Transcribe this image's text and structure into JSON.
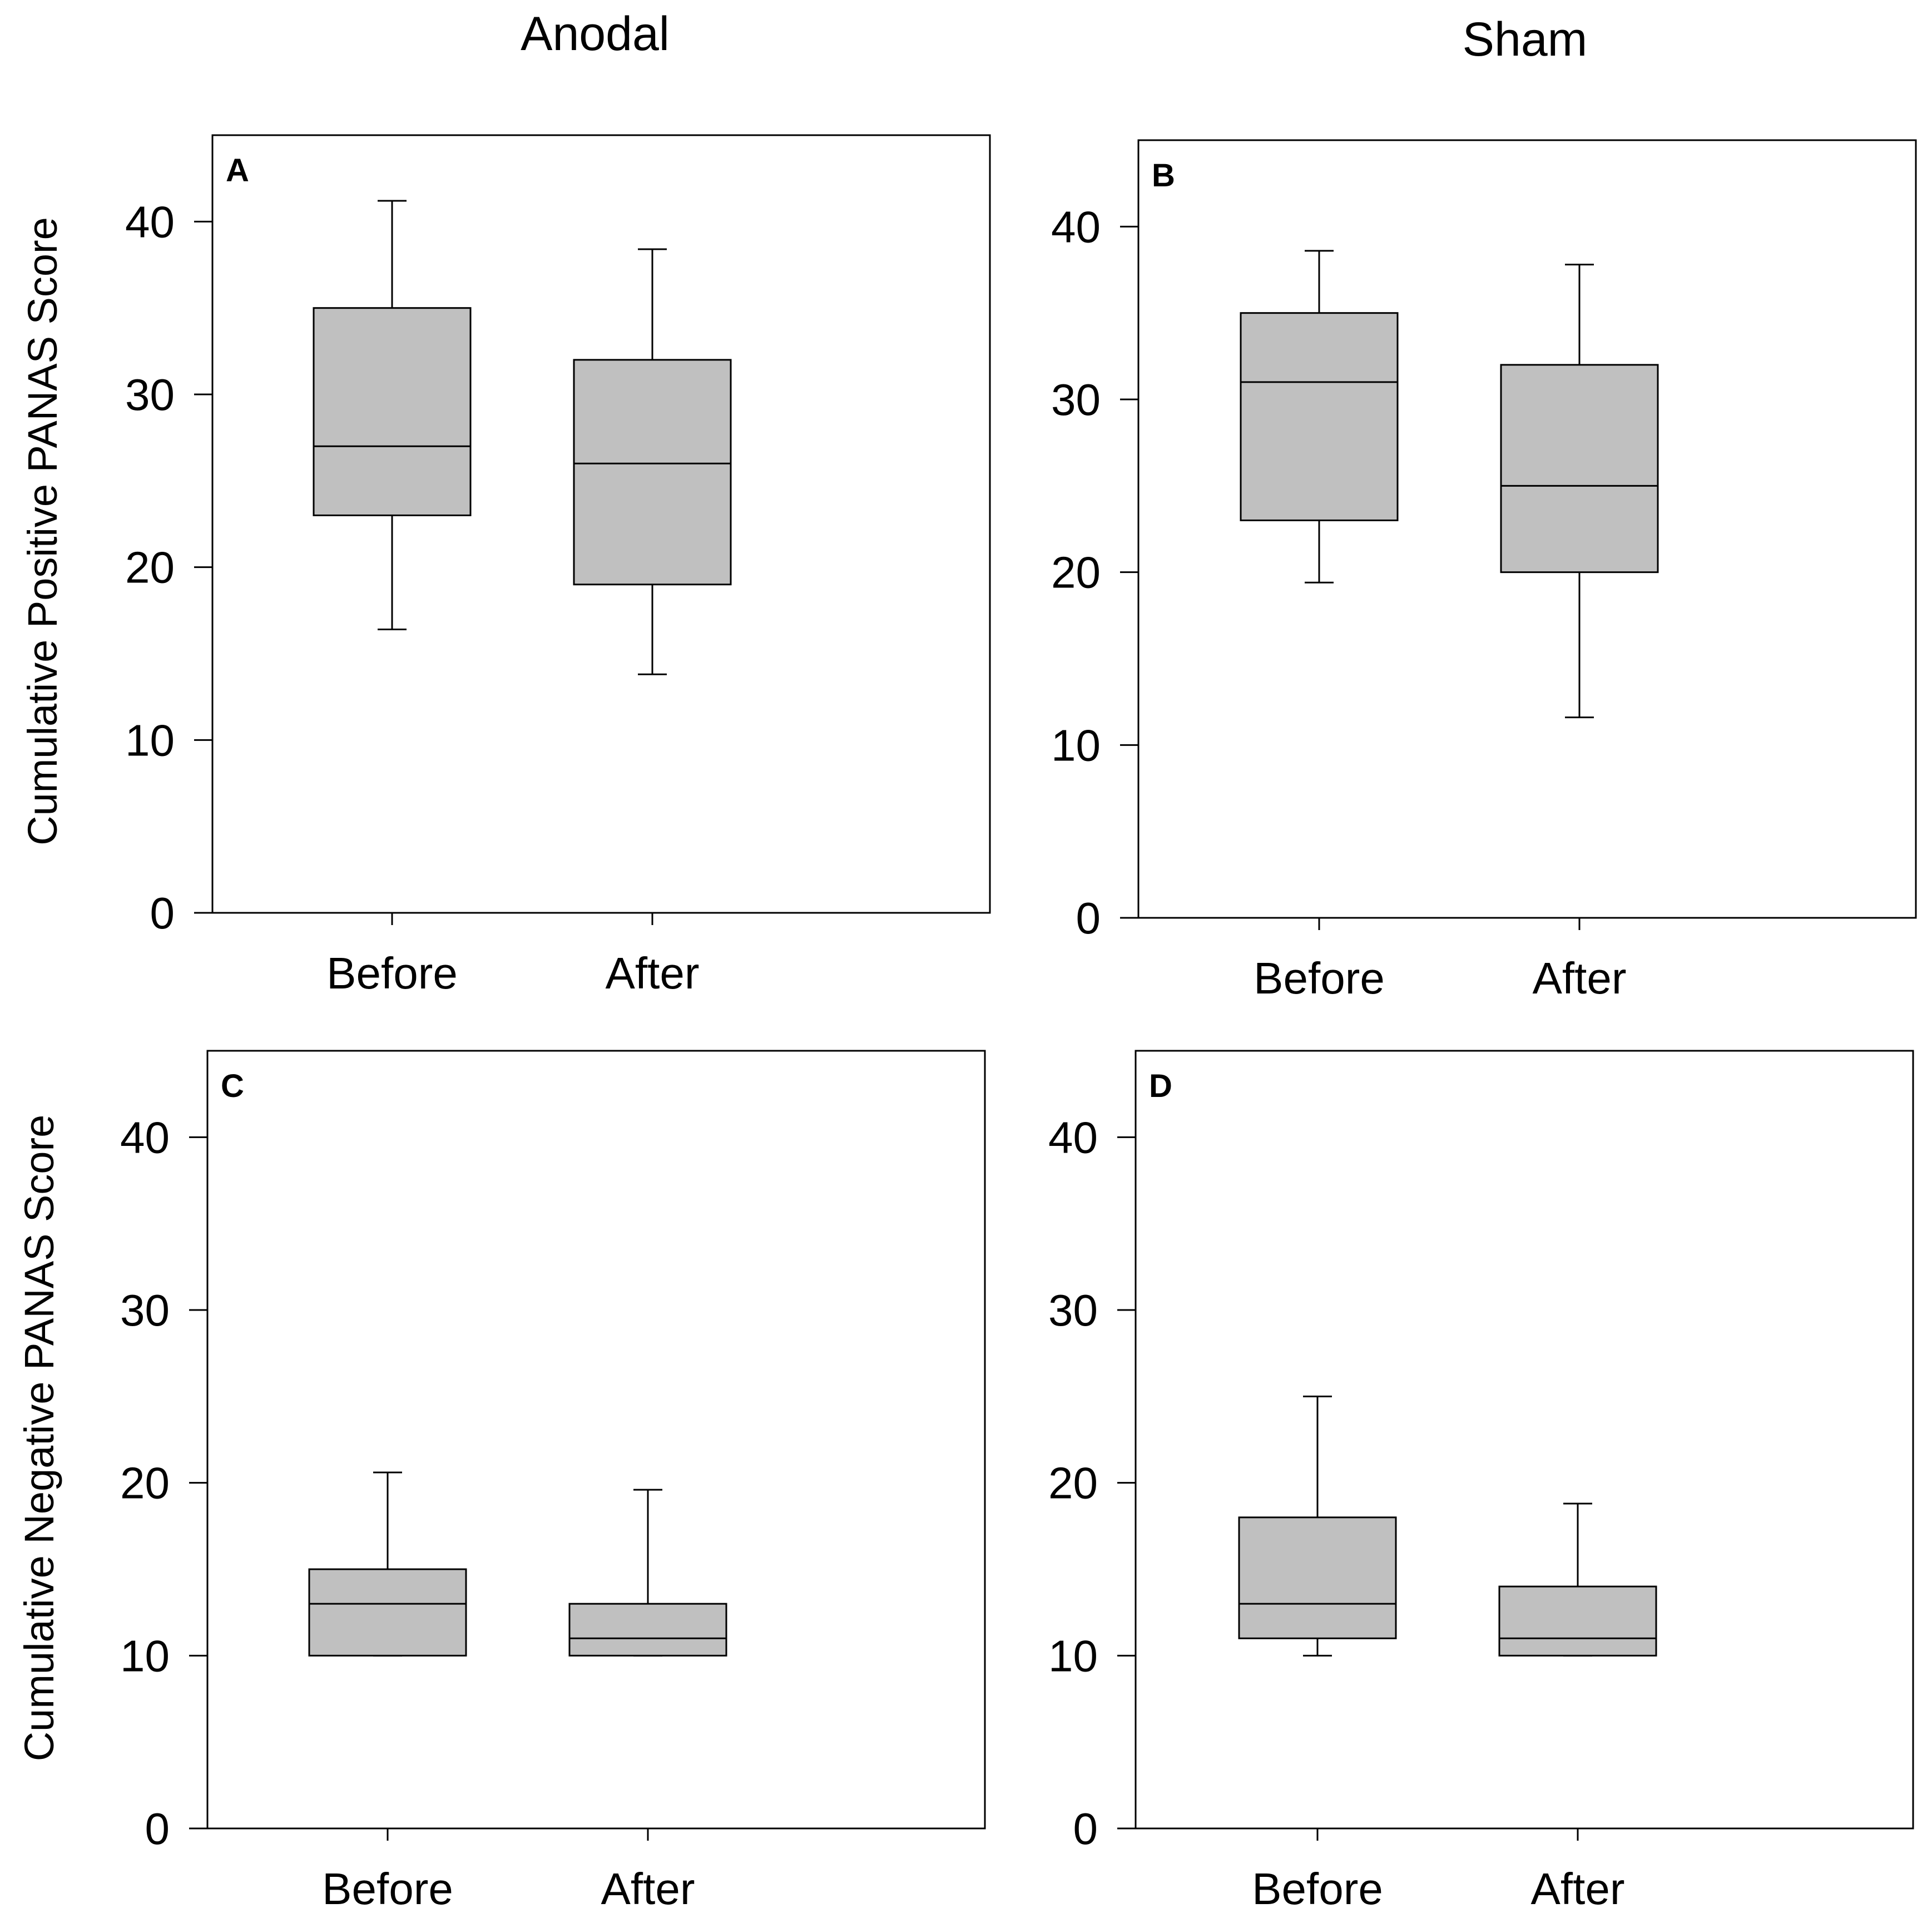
{
  "column_titles": [
    "Anodal",
    "Sham"
  ],
  "row_labels": [
    "Cumulative Positive PANAS Score",
    "Cumulative Negative PANAS Score"
  ],
  "colors": {
    "box_fill": "#c0c0c0",
    "stroke": "#000000",
    "background": "#ffffff"
  },
  "chart_data": [
    {
      "type": "box",
      "panel_label": "A",
      "ylim": [
        0,
        45
      ],
      "yticks": [
        "0",
        "10",
        "20",
        "30",
        "40"
      ],
      "categories": [
        "Before",
        "After"
      ],
      "boxes": [
        {
          "category": "Before",
          "whisker_low": 16.4,
          "q1": 23,
          "median": 27,
          "q3": 35,
          "whisker_high": 41.2
        },
        {
          "category": "After",
          "whisker_low": 13.8,
          "q1": 19,
          "median": 26,
          "q3": 32,
          "whisker_high": 38.4
        }
      ]
    },
    {
      "type": "box",
      "panel_label": "B",
      "ylim": [
        0,
        45
      ],
      "yticks": [
        "0",
        "10",
        "20",
        "30",
        "40"
      ],
      "categories": [
        "Before",
        "After"
      ],
      "boxes": [
        {
          "category": "Before",
          "whisker_low": 19.4,
          "q1": 23,
          "median": 31,
          "q3": 35,
          "whisker_high": 38.6
        },
        {
          "category": "After",
          "whisker_low": 11.6,
          "q1": 20,
          "median": 25,
          "q3": 32,
          "whisker_high": 37.8
        }
      ]
    },
    {
      "type": "box",
      "panel_label": "C",
      "ylim": [
        0,
        45
      ],
      "yticks": [
        "0",
        "10",
        "20",
        "30",
        "40"
      ],
      "categories": [
        "Before",
        "After"
      ],
      "boxes": [
        {
          "category": "Before",
          "whisker_low": 10,
          "q1": 10,
          "median": 13,
          "q3": 15,
          "whisker_high": 20.6
        },
        {
          "category": "After",
          "whisker_low": 10,
          "q1": 10,
          "median": 11,
          "q3": 13,
          "whisker_high": 19.6
        }
      ]
    },
    {
      "type": "box",
      "panel_label": "D",
      "ylim": [
        0,
        45
      ],
      "yticks": [
        "0",
        "10",
        "20",
        "30",
        "40"
      ],
      "categories": [
        "Before",
        "After"
      ],
      "boxes": [
        {
          "category": "Before",
          "whisker_low": 10,
          "q1": 11,
          "median": 13,
          "q3": 18,
          "whisker_high": 25
        },
        {
          "category": "After",
          "whisker_low": 10,
          "q1": 10,
          "median": 11,
          "q3": 14,
          "whisker_high": 18.8
        }
      ]
    }
  ]
}
